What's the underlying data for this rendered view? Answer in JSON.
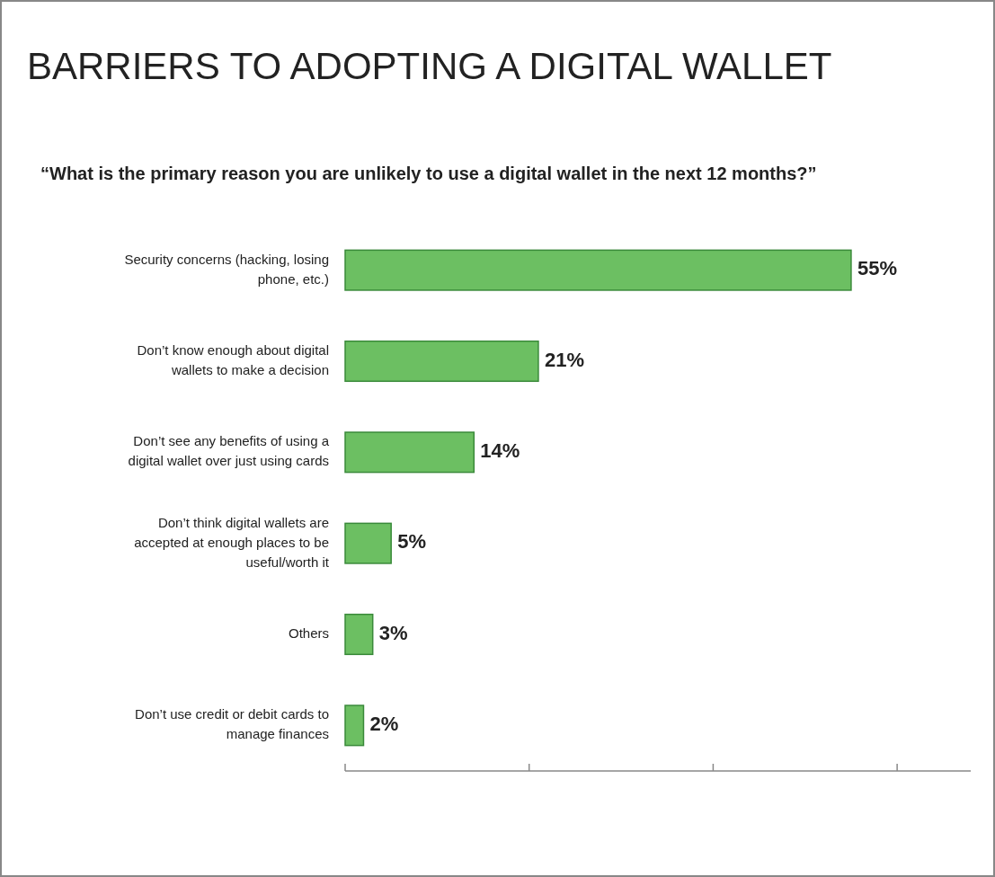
{
  "chart_data": {
    "type": "bar",
    "orientation": "horizontal",
    "title": "BARRIERS TO ADOPTING A DIGITAL WALLET",
    "subtitle": "“What is the primary reason you are unlikely to use a digital wallet in the next 12 months?”",
    "categories": [
      "Security concerns (hacking, losing phone, etc.)",
      "Don’t know enough about digital wallets to make a decision",
      "Don’t see any benefits of using a digital wallet over just using cards",
      "Don’t think digital wallets are accepted at enough places to be useful/worth it",
      "Others",
      "Don’t use credit or debit cards to manage finances"
    ],
    "values": [
      55,
      21,
      14,
      5,
      3,
      2
    ],
    "value_labels": [
      "55%",
      "21%",
      "14%",
      "5%",
      "3%",
      "2%"
    ],
    "color": "#6cbf62",
    "xlim": [
      0,
      68
    ],
    "xticks": [
      {
        "value": 0,
        "label": null
      },
      {
        "value": 20,
        "label": null
      },
      {
        "value": 40,
        "label": null
      },
      {
        "value": 60,
        "label": null
      }
    ],
    "tick_labels": "y"
  }
}
